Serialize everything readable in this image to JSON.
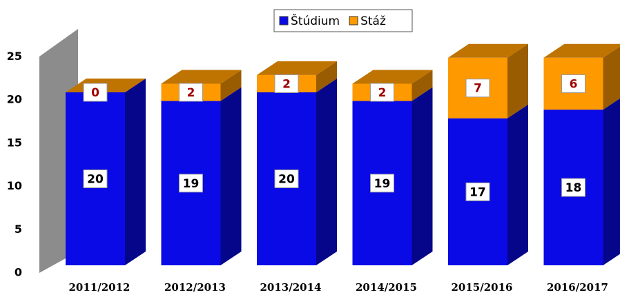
{
  "chart_data": {
    "type": "bar",
    "stacked": true,
    "categories": [
      "2011/2012",
      "2012/2013",
      "2013/2014",
      "2014/2015",
      "2015/2016",
      "2016/2017"
    ],
    "series": [
      {
        "name": "Štúdium",
        "color": "#0a0ae6",
        "label_color": "#000000",
        "values": [
          20,
          19,
          20,
          19,
          17,
          18
        ]
      },
      {
        "name": "Stáž",
        "color": "#ff9900",
        "label_color": "#a00000",
        "values": [
          0,
          2,
          2,
          2,
          7,
          6
        ]
      }
    ],
    "ylim": [
      0,
      25
    ],
    "yticks": [
      0,
      5,
      10,
      15,
      20,
      25
    ],
    "grid": false,
    "legend": "top"
  }
}
